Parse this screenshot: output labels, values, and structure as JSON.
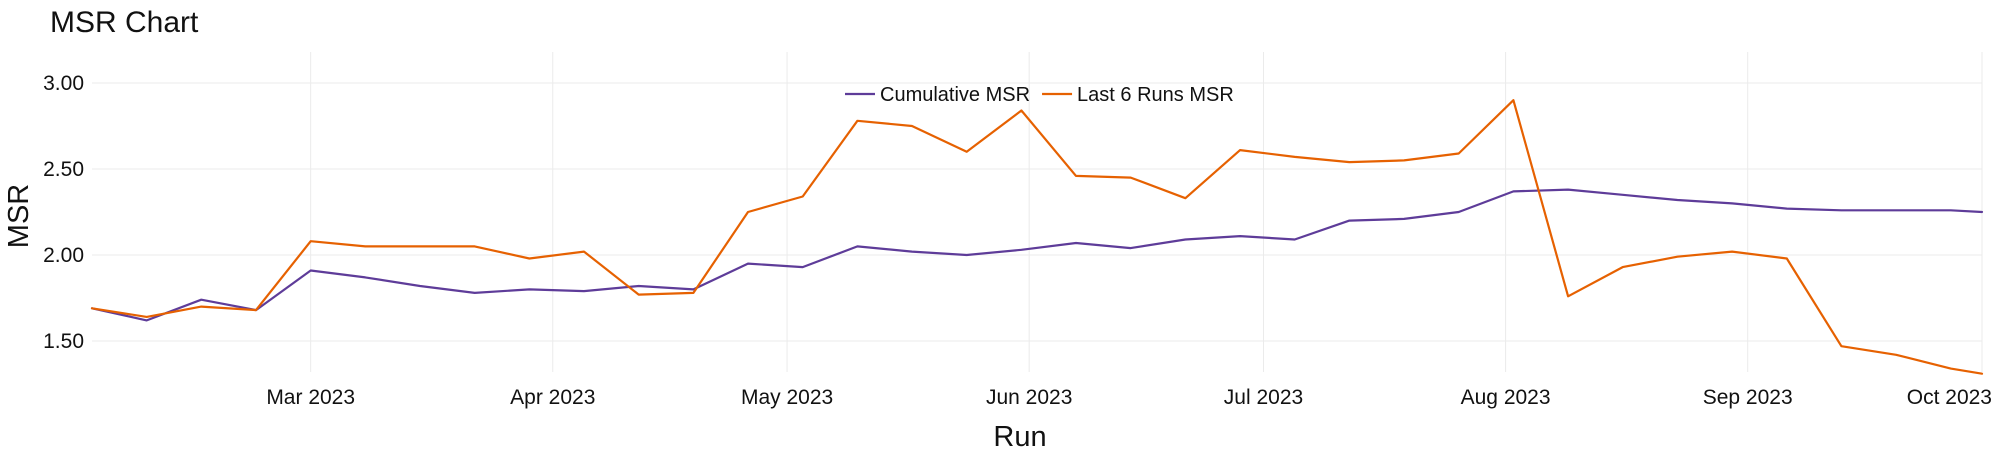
{
  "chart_data": {
    "type": "line",
    "title": "MSR Chart",
    "xlabel": "Run",
    "ylabel": "MSR",
    "x_type": "date",
    "xlim": [
      "2023-02-01",
      "2023-10-01"
    ],
    "ylim": [
      1.32,
      3.18
    ],
    "x_ticks": [
      "2023-03-01",
      "2023-04-01",
      "2023-05-01",
      "2023-06-01",
      "2023-07-01",
      "2023-08-01",
      "2023-09-01",
      "2023-10-01"
    ],
    "x_tick_labels": [
      "Mar 2023",
      "Apr 2023",
      "May 2023",
      "Jun 2023",
      "Jul 2023",
      "Aug 2023",
      "Sep 2023",
      "Oct 2023"
    ],
    "y_ticks": [
      1.5,
      2.0,
      2.5,
      3.0
    ],
    "y_tick_labels": [
      "1.50",
      "2.00",
      "2.50",
      "3.00"
    ],
    "grid": true,
    "legend_position": "top-center",
    "x": [
      "2023-02-01",
      "2023-02-08",
      "2023-02-15",
      "2023-02-22",
      "2023-03-01",
      "2023-03-08",
      "2023-03-15",
      "2023-03-22",
      "2023-03-29",
      "2023-04-05",
      "2023-04-12",
      "2023-04-19",
      "2023-04-26",
      "2023-05-03",
      "2023-05-10",
      "2023-05-17",
      "2023-05-24",
      "2023-05-31",
      "2023-06-07",
      "2023-06-14",
      "2023-06-21",
      "2023-06-28",
      "2023-07-05",
      "2023-07-12",
      "2023-07-19",
      "2023-07-26",
      "2023-08-02",
      "2023-08-09",
      "2023-08-16",
      "2023-08-23",
      "2023-08-30",
      "2023-09-06",
      "2023-09-13",
      "2023-09-20",
      "2023-09-27",
      "2023-10-01"
    ],
    "series": [
      {
        "name": "Cumulative MSR",
        "color": "#5e3c99",
        "values": [
          1.69,
          1.62,
          1.74,
          1.68,
          1.91,
          1.87,
          1.82,
          1.78,
          1.8,
          1.79,
          1.82,
          1.8,
          1.95,
          1.93,
          2.05,
          2.02,
          2.0,
          2.03,
          2.07,
          2.04,
          2.09,
          2.11,
          2.09,
          2.2,
          2.21,
          2.25,
          2.37,
          2.38,
          2.35,
          2.32,
          2.3,
          2.27,
          2.26,
          2.26,
          2.26,
          2.25
        ]
      },
      {
        "name": "Last 6 Runs MSR",
        "color": "#e66101",
        "values": [
          1.69,
          1.64,
          1.7,
          1.68,
          2.08,
          2.05,
          2.05,
          2.05,
          1.98,
          2.02,
          1.77,
          1.78,
          2.25,
          2.34,
          2.78,
          2.75,
          2.6,
          2.84,
          2.46,
          2.45,
          2.33,
          2.61,
          2.57,
          2.54,
          2.55,
          2.59,
          2.9,
          1.76,
          1.93,
          1.99,
          2.02,
          1.98,
          1.47,
          1.42,
          1.34,
          1.31
        ]
      }
    ]
  }
}
